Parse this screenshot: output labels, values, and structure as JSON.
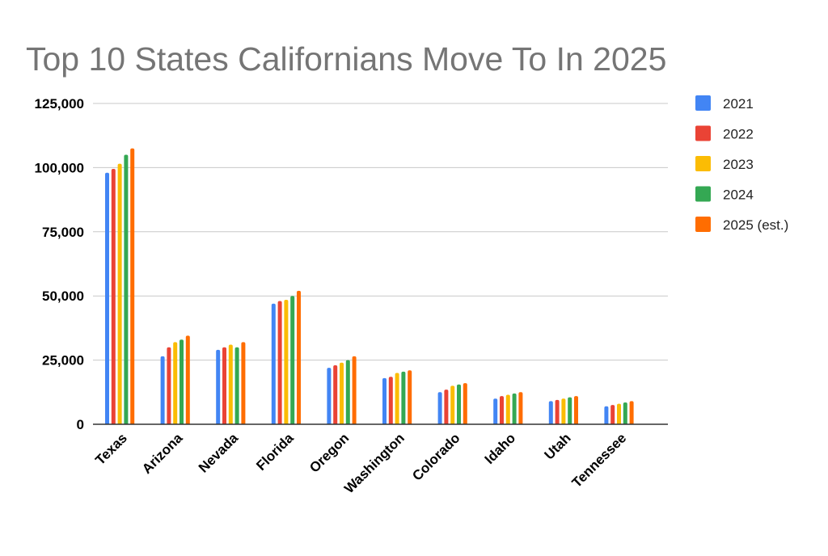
{
  "chart_data": {
    "type": "bar",
    "title": "Top 10 States Californians Move To In 2025",
    "xlabel": "",
    "ylabel": "",
    "ylim": [
      0,
      125000
    ],
    "yticks": [
      0,
      25000,
      50000,
      75000,
      100000,
      125000
    ],
    "ytick_labels": [
      "0",
      "25,000",
      "50,000",
      "75,000",
      "100,000",
      "125,000"
    ],
    "grid": true,
    "legend_position": "right",
    "categories": [
      "Texas",
      "Arizona",
      "Nevada",
      "Florida",
      "Oregon",
      "Washington",
      "Colorado",
      "Idaho",
      "Utah",
      "Tennessee"
    ],
    "series": [
      {
        "name": "2021",
        "color": "#4285F4",
        "values": [
          98000,
          26500,
          29000,
          47000,
          22000,
          18000,
          12500,
          10000,
          9000,
          7000
        ]
      },
      {
        "name": "2022",
        "color": "#EA4335",
        "values": [
          99500,
          30000,
          30000,
          48000,
          23000,
          18500,
          13500,
          11000,
          9500,
          7500
        ]
      },
      {
        "name": "2023",
        "color": "#FBBC04",
        "values": [
          101500,
          32000,
          31000,
          48500,
          24000,
          20000,
          15000,
          11500,
          10000,
          8000
        ]
      },
      {
        "name": "2024",
        "color": "#34A853",
        "values": [
          105000,
          33000,
          30000,
          50000,
          25000,
          20500,
          15500,
          12000,
          10500,
          8500
        ]
      },
      {
        "name": "2025 (est.)",
        "color": "#FF6D01",
        "values": [
          107500,
          34500,
          32000,
          52000,
          26500,
          21000,
          16000,
          12500,
          11000,
          9000
        ]
      }
    ]
  }
}
